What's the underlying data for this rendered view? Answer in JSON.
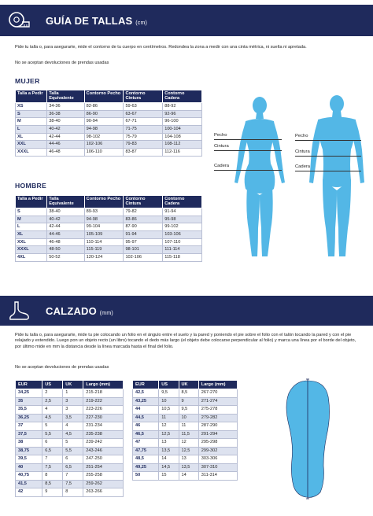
{
  "clothing": {
    "title": "GUÍA DE TALLAS",
    "unit": "(cm)",
    "intro": "Pide tu talla o, para asegurarte, mide el contorno de tu cuerpo en centímetros. Redondea la zona a medir con una cinta métrica, ni suelta ni apretada.",
    "no_returns": "No se aceptan devoluciones de prendas usadas"
  },
  "mujer": {
    "heading": "MUJER",
    "headers": [
      "Talla a Pedir",
      "Talla Equivalente",
      "Contorno Pecho",
      "Contorno Cintura",
      "Contorno Cadera"
    ],
    "rows": [
      [
        "XS",
        "34-36",
        "82-86",
        "59-63",
        "88-92"
      ],
      [
        "S",
        "36-38",
        "86-90",
        "63-67",
        "92-96"
      ],
      [
        "M",
        "38-40",
        "90-94",
        "67-71",
        "96-100"
      ],
      [
        "L",
        "40-42",
        "94-98",
        "71-75",
        "100-104"
      ],
      [
        "XL",
        "42-44",
        "98-102",
        "75-79",
        "104-108"
      ],
      [
        "XXL",
        "44-46",
        "102-106",
        "79-83",
        "108-112"
      ],
      [
        "XXXL",
        "46-48",
        "106-110",
        "83-87",
        "112-116"
      ]
    ]
  },
  "hombre": {
    "heading": "HOMBRE",
    "headers": [
      "Talla a Pedir",
      "Talla Equivalente",
      "Contorno Pecho",
      "Contorno Cintura",
      "Contorno Cadera"
    ],
    "rows": [
      [
        "S",
        "38-40",
        "89-93",
        "79-82",
        "91-94"
      ],
      [
        "M",
        "40-42",
        "94-98",
        "83-86",
        "95-98"
      ],
      [
        "L",
        "42-44",
        "99-104",
        "87-90",
        "99-102"
      ],
      [
        "XL",
        "44-46",
        "105-109",
        "91-94",
        "103-106"
      ],
      [
        "XXL",
        "46-48",
        "110-114",
        "95-97",
        "107-110"
      ],
      [
        "XXXL",
        "48-50",
        "115-119",
        "98-101",
        "111-114"
      ],
      [
        "4XL",
        "50-52",
        "120-124",
        "102-106",
        "115-118"
      ]
    ]
  },
  "body_labels": {
    "woman": [
      "Pecho",
      "Cintura",
      "Cadera"
    ],
    "man": [
      "Pecho",
      "Cintura",
      "Cadera"
    ]
  },
  "footwear": {
    "title": "CALZADO",
    "unit": "(mm)",
    "intro": "Pide tu talla o, para asegurarte, mide tu pie colocando un folio en el ángulo entre el suelo y la pared y poniendo el pie sobre el folio con el talón tocando la pared y con el pie relajado y extendido. Luego pon un objeto recto (un libro) tocando el dedo más largo (el objeto debe colocarse perpendicular al folio) y marca una línea por el borde del objeto, por último mide en mm la distancia desde la línea marcada hasta el final del folio.",
    "no_returns": "No se aceptan devoluciones de prendas usadas",
    "headers": [
      "EUR",
      "US",
      "UK",
      "Largo (mm)"
    ],
    "left_rows": [
      [
        "34,25",
        "2",
        "1",
        "215-218"
      ],
      [
        "35",
        "2,5",
        "3",
        "219-222"
      ],
      [
        "35,5",
        "4",
        "3",
        "223-226"
      ],
      [
        "36,25",
        "4,5",
        "3,5",
        "227-230"
      ],
      [
        "37",
        "5",
        "4",
        "231-234"
      ],
      [
        "37,5",
        "5,5",
        "4,5",
        "235-238"
      ],
      [
        "38",
        "6",
        "5",
        "239-242"
      ],
      [
        "38,75",
        "6,5",
        "5,5",
        "243-246"
      ],
      [
        "39,5",
        "7",
        "6",
        "247-250"
      ],
      [
        "40",
        "7,5",
        "6,5",
        "251-254"
      ],
      [
        "40,75",
        "8",
        "7",
        "255-258"
      ],
      [
        "41,5",
        "8,5",
        "7,5",
        "259-262"
      ],
      [
        "42",
        "9",
        "8",
        "263-266"
      ]
    ],
    "right_rows": [
      [
        "42,5",
        "9,5",
        "8,5",
        "267-270"
      ],
      [
        "43,25",
        "10",
        "9",
        "271-274"
      ],
      [
        "44",
        "10,5",
        "9,5",
        "275-278"
      ],
      [
        "44,5",
        "11",
        "10",
        "279-282"
      ],
      [
        "46",
        "12",
        "11",
        "287-290"
      ],
      [
        "46,5",
        "12,5",
        "11,5",
        "291-294"
      ],
      [
        "47",
        "13",
        "12",
        "295-298"
      ],
      [
        "47,75",
        "13,5",
        "12,5",
        "299-302"
      ],
      [
        "48,5",
        "14",
        "13",
        "303-306"
      ],
      [
        "49,25",
        "14,5",
        "13,5",
        "307-310"
      ],
      [
        "50",
        "15",
        "14",
        "311-314"
      ]
    ]
  },
  "icons": {
    "clothing": "measuring-tape-icon",
    "footwear": "foot-icon"
  },
  "colors": {
    "navy": "#1f2a5c",
    "row_alt": "#dde2ef",
    "body_blue": "#53b7e6"
  }
}
